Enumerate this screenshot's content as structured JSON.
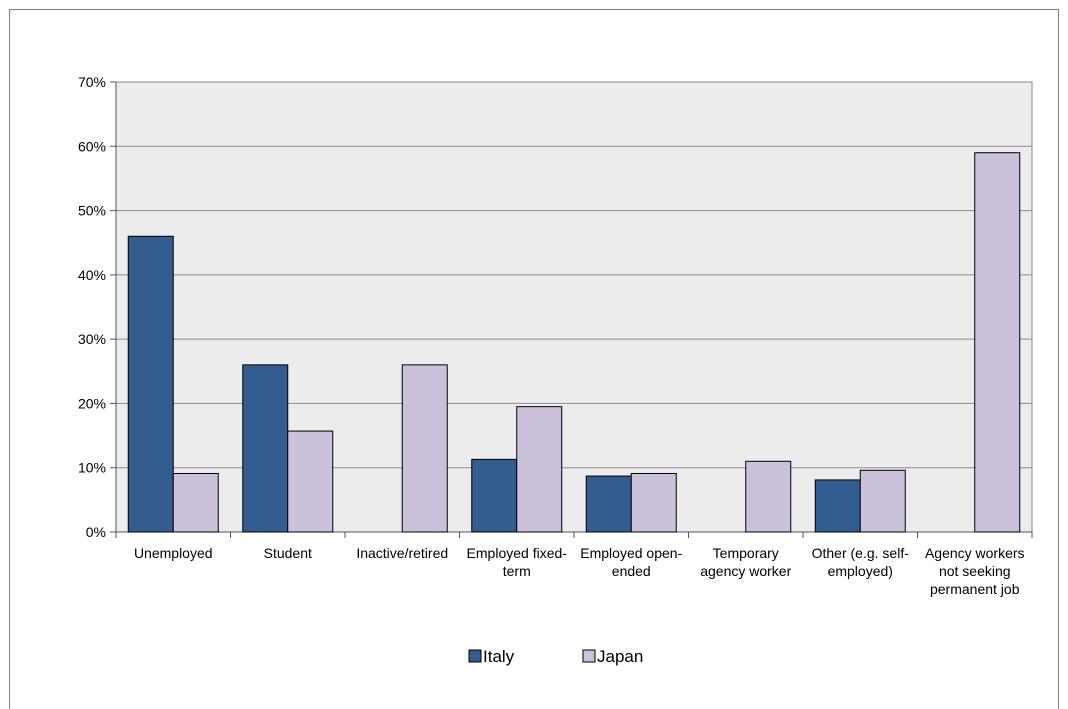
{
  "chart_data": {
    "type": "bar",
    "categories": [
      [
        "Unemployed"
      ],
      [
        "Student"
      ],
      [
        "Inactive/retired"
      ],
      [
        "Employed fixed-",
        "term"
      ],
      [
        "Employed open-",
        "ended"
      ],
      [
        "Temporary",
        "agency worker"
      ],
      [
        "Other (e.g. self-",
        "employed)"
      ],
      [
        "Agency workers",
        "not seeking",
        "permanent job"
      ]
    ],
    "series": [
      {
        "name": "Italy",
        "color": "#335c8f",
        "values": [
          46,
          26,
          0,
          11.3,
          8.7,
          0,
          8.1,
          0
        ]
      },
      {
        "name": "Japan",
        "color": "#ccc1da",
        "values": [
          9.1,
          15.7,
          26,
          19.5,
          9.1,
          11,
          9.6,
          59
        ]
      }
    ],
    "ylim": [
      0,
      70
    ],
    "yticks": [
      "0%",
      "10%",
      "20%",
      "30%",
      "40%",
      "50%",
      "60%",
      "70%"
    ],
    "grid": true,
    "plot_background": "#ececec",
    "legend_position": "bottom"
  }
}
